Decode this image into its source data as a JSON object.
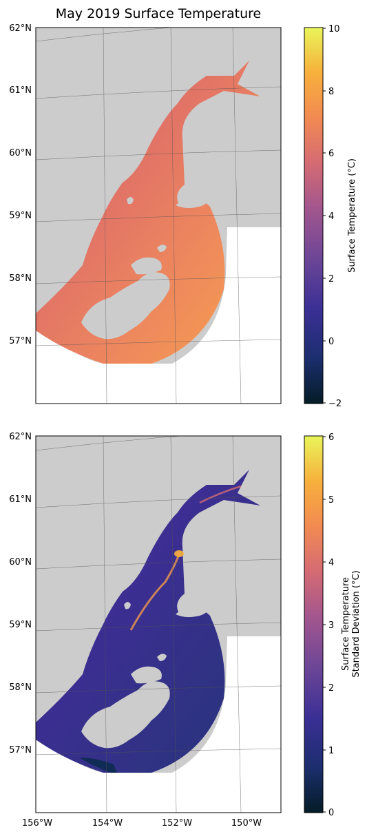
{
  "title": "May 2019 Surface Temperature",
  "lat_ticks": [
    "62°N",
    "61°N",
    "60°N",
    "59°N",
    "58°N",
    "57°N"
  ],
  "lon_ticks": [
    "156°W",
    "154°W",
    "152°W",
    "150°W"
  ],
  "panels": [
    {
      "name": "mean",
      "colorbar": {
        "label_lines": [
          "Surface Temperature (°C)"
        ],
        "ticks": [
          "10",
          "8",
          "6",
          "4",
          "2",
          "0",
          "−2"
        ],
        "min": -2,
        "max": 10
      }
    },
    {
      "name": "std",
      "colorbar": {
        "label_lines": [
          "Surface Temperature",
          "Standard Deviation (°C)"
        ],
        "ticks": [
          "6",
          "5",
          "4",
          "3",
          "2",
          "1",
          "0"
        ],
        "min": 0,
        "max": 6
      }
    }
  ],
  "colors": {
    "land": "#cccccc",
    "gridline": "#555555",
    "colormap": [
      "#041c26",
      "#1c2e6e",
      "#3a2f95",
      "#6a4597",
      "#a3568e",
      "#d56b73",
      "#f28a52",
      "#f7b03c",
      "#e9f55a"
    ]
  }
}
